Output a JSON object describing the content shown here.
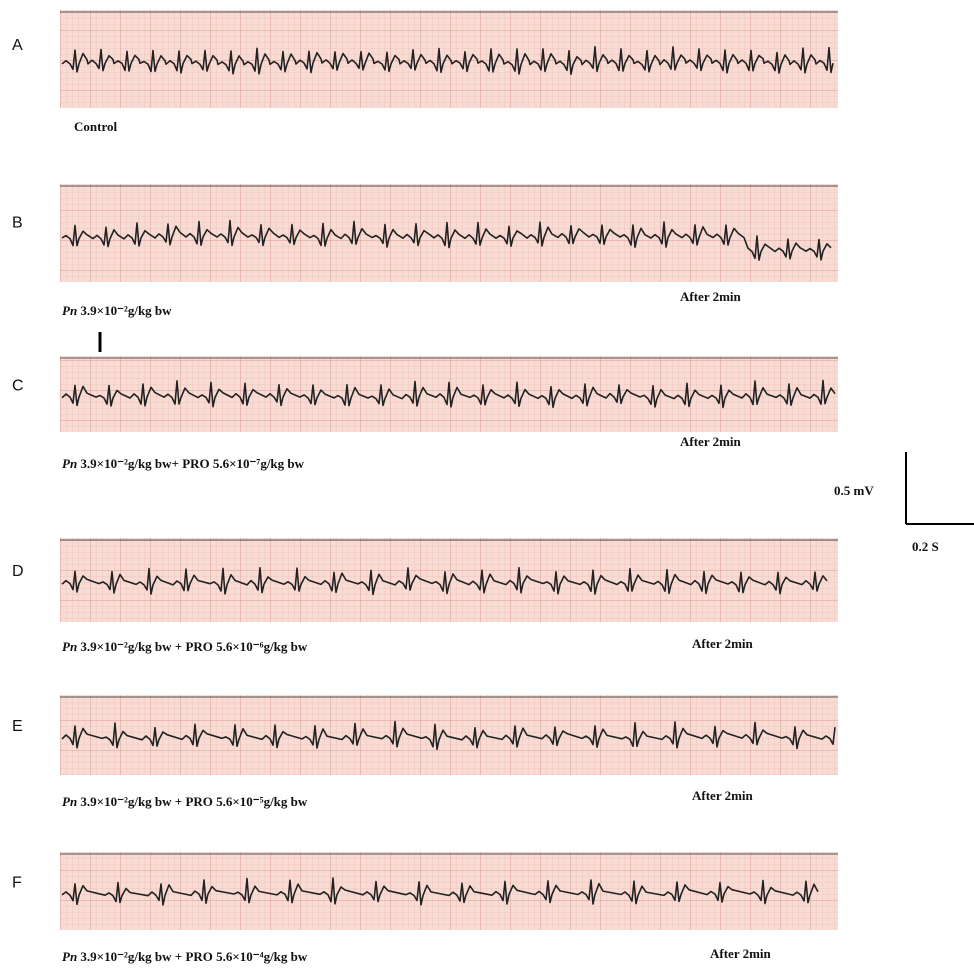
{
  "panels": [
    {
      "label": "A",
      "caption": {
        "text": "Control"
      }
    },
    {
      "label": "B",
      "caption": {
        "species": "Pn",
        "dose": " 3.9×10⁻²g/kg bw"
      },
      "time": "After  2min"
    },
    {
      "label": "C",
      "caption": {
        "species": "Pn",
        "dose": " 3.9×10⁻²g/kg bw+ PRO 5.6×10⁻⁷g/kg bw"
      },
      "time": "After  2min"
    },
    {
      "label": "D",
      "caption": {
        "species": "Pn",
        "dose": " 3.9×10⁻²g/kg bw + PRO 5.6×10⁻⁶g/kg bw"
      },
      "time": "After  2min"
    },
    {
      "label": "E",
      "caption": {
        "species": "Pn",
        "dose": " 3.9×10⁻²g/kg bw + PRO 5.6×10⁻⁵g/kg bw"
      },
      "time": "After  2min"
    },
    {
      "label": "F",
      "caption": {
        "species": "Pn",
        "dose": " 3.9×10⁻²g/kg bw + PRO 5.6×10⁻⁴g/kg bw"
      },
      "time": "After  2min"
    }
  ],
  "scale_bar": {
    "voltage": "0.5 mV",
    "time": "0.2 S"
  }
}
